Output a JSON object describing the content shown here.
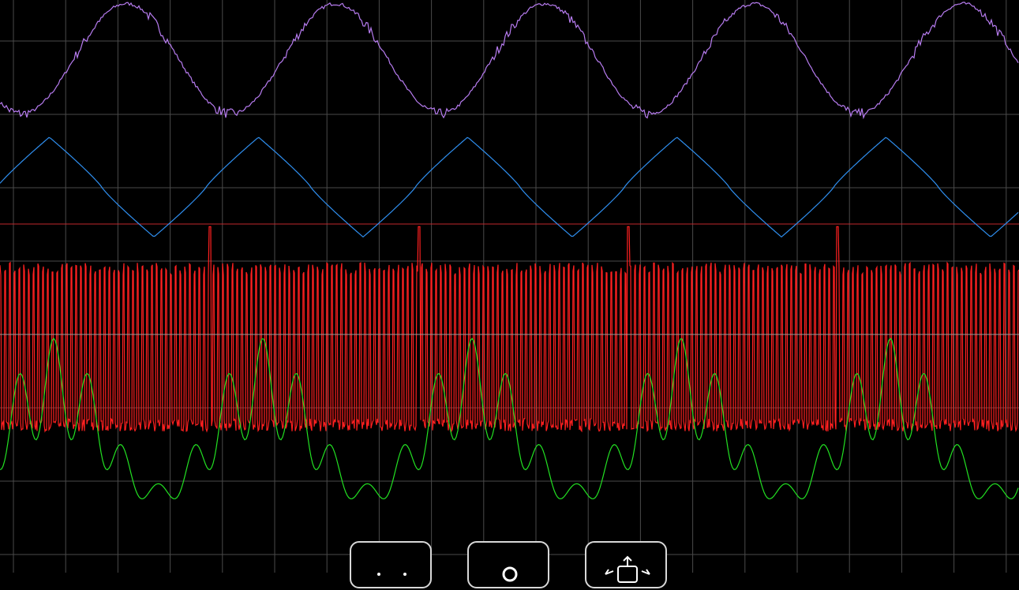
{
  "chart_data": {
    "type": "line",
    "grid": true,
    "grid_divisions": {
      "x": 19.5,
      "y": 7.8
    },
    "trigger_level_color": "#c0282d",
    "series": [
      {
        "color": "#b77cf0",
        "shape": "sine",
        "period_div": 4.0,
        "center_div": 0.8,
        "amplitude_div": 0.75,
        "noise": 0.06
      },
      {
        "color": "#2f8ff0",
        "shape": "triangle",
        "period_div": 4.0,
        "center_div": 2.55,
        "amplitude_div": 0.68,
        "noise": 0.0
      },
      {
        "color": "#ff2020",
        "shape": "square-burst",
        "period_div": 0.09,
        "center_div": 4.7,
        "amplitude_div": 1.15,
        "noise": 0.15
      },
      {
        "color": "#22e022",
        "shape": "multi-tone",
        "period_div": 4.0,
        "center_div": 6.0,
        "amplitude_div": 1.2,
        "noise": 0.0
      }
    ]
  },
  "toolbar": {
    "buttons": [
      {
        "icon": "cursors-icon"
      },
      {
        "icon": "search-icon"
      },
      {
        "icon": "export-icon"
      }
    ]
  }
}
